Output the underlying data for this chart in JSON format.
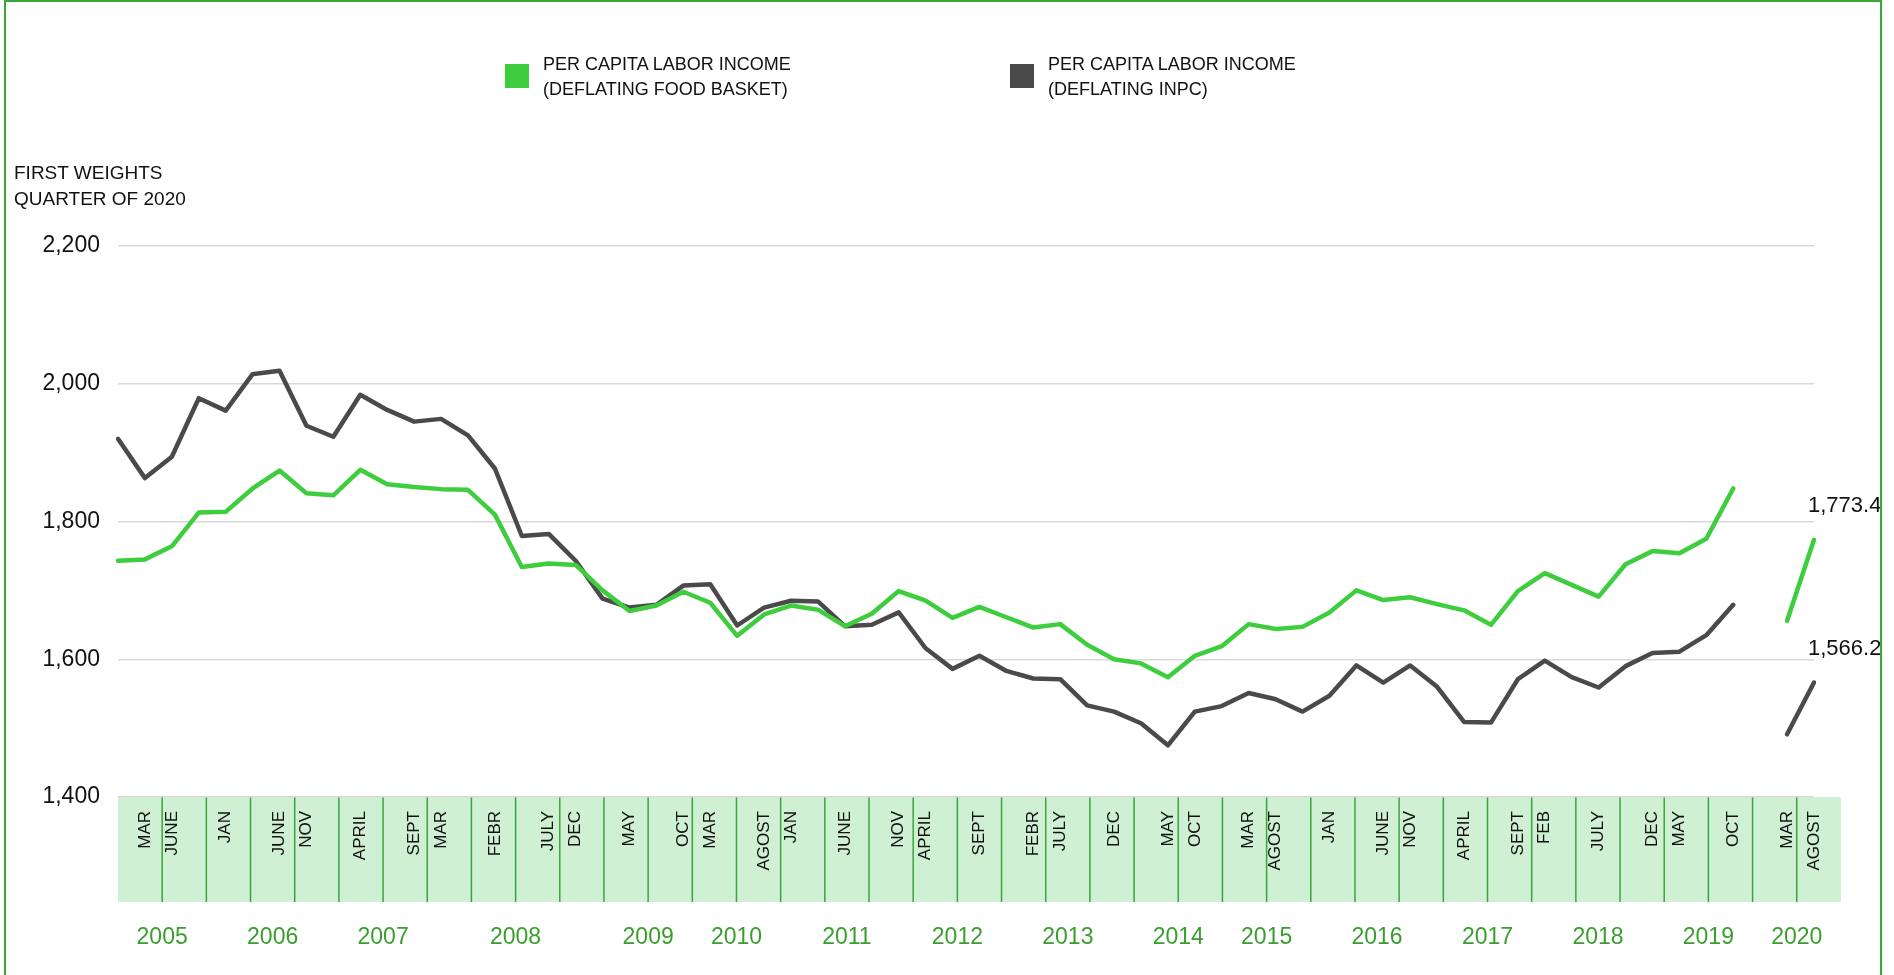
{
  "chart_data": {
    "type": "line",
    "ylabel": "FIRST WEIGHTS QUARTER OF 2020",
    "legend": "top",
    "grid": "y",
    "marker": "none",
    "line_style": "solid",
    "categories": [
      null,
      "MAR",
      "JUNE",
      null,
      "JAN",
      null,
      "JUNE",
      "NOV",
      null,
      "APRIL",
      null,
      "SEPT",
      "MAR",
      null,
      "FEBR",
      null,
      "JULY",
      "DEC",
      null,
      "MAY",
      null,
      "OCT",
      "MAR",
      null,
      "AGOST",
      "JAN",
      null,
      "JUNE",
      null,
      "NOV",
      "APRIL",
      null,
      "SEPT",
      null,
      "FEBR",
      "JULY",
      null,
      "DEC",
      null,
      "MAY",
      "OCT",
      null,
      "MAR",
      "AGOST",
      null,
      "JAN",
      null,
      "JUNE",
      "NOV",
      null,
      "APRIL",
      null,
      "SEPT",
      "FEB",
      null,
      "JULY",
      null,
      "DEC",
      "MAY",
      null,
      "OCT",
      null,
      "MAR",
      "AGOST"
    ],
    "x2lim": [
      2004.52,
      2020.27
    ],
    "x2ticks": [
      {
        "value": 2004.93,
        "label": "2005"
      },
      {
        "value": 2005.956,
        "label": "2006"
      },
      {
        "value": 2006.982,
        "label": "2007"
      },
      {
        "value": 2008.212,
        "label": "2008"
      },
      {
        "value": 2009.443,
        "label": "2009"
      },
      {
        "value": 2010.264,
        "label": "2010"
      },
      {
        "value": 2011.289,
        "label": "2011"
      },
      {
        "value": 2012.315,
        "label": "2012"
      },
      {
        "value": 2013.341,
        "label": "2013"
      },
      {
        "value": 2014.366,
        "label": "2014"
      },
      {
        "value": 2015.187,
        "label": "2015"
      },
      {
        "value": 2016.212,
        "label": "2016"
      },
      {
        "value": 2017.238,
        "label": "2017"
      },
      {
        "value": 2018.264,
        "label": "2018"
      },
      {
        "value": 2019.289,
        "label": "2019"
      },
      {
        "value": 2020.11,
        "label": "2020"
      }
    ],
    "ylim": [
      1400,
      2200
    ],
    "yticks": [
      {
        "value": 1400,
        "label": "1,400"
      },
      {
        "value": 1600,
        "label": "1,600"
      },
      {
        "value": 1800,
        "label": "1,800"
      },
      {
        "value": 2000,
        "label": "2,000"
      },
      {
        "value": 2200,
        "label": "2,200"
      }
    ],
    "series": [
      {
        "name": "PER CAPITA LABOR INCOME (DEFLATING FOOD BASKET)",
        "color": "#3dcd3d",
        "values": [
          1743,
          1745,
          1764,
          1813,
          1814,
          1848,
          1874,
          1841,
          1838,
          1875,
          1854,
          1850,
          1847,
          1846,
          1810,
          1734,
          1739,
          1737,
          1700,
          1670,
          1678,
          1698,
          1682,
          1634,
          1665,
          1678,
          1672,
          1648,
          1666,
          1699,
          1685,
          1660,
          1676,
          1661,
          1646,
          1651,
          1621,
          1600,
          1594,
          1574,
          1605,
          1619,
          1651,
          1644,
          1647,
          1668,
          1700,
          1686,
          1690,
          1680,
          1671,
          1650,
          1699,
          1725,
          1708,
          1691,
          1738,
          1757,
          1754,
          1775,
          1848,
          null,
          1656,
          1773.4
        ],
        "value_labels": [
          null,
          null,
          null,
          null,
          null,
          null,
          null,
          null,
          null,
          null,
          null,
          null,
          null,
          null,
          null,
          null,
          null,
          null,
          null,
          null,
          null,
          null,
          null,
          null,
          null,
          null,
          null,
          null,
          null,
          null,
          null,
          null,
          null,
          null,
          null,
          null,
          null,
          null,
          null,
          null,
          null,
          null,
          null,
          null,
          null,
          null,
          null,
          null,
          null,
          null,
          null,
          null,
          null,
          null,
          null,
          null,
          null,
          null,
          null,
          null,
          null,
          null,
          null,
          "1,773.4"
        ]
      },
      {
        "name": "PER CAPITA LABOR INCOME (DEFLATING INPC)",
        "color": "#4a4a4a",
        "values": [
          1920,
          1863,
          1894,
          1979,
          1961,
          2014,
          2019,
          1939,
          1923,
          1984,
          1962,
          1945,
          1949,
          1925,
          1877,
          1779,
          1782,
          1743,
          1688,
          1675,
          1679,
          1707,
          1709,
          1649,
          1675,
          1685,
          1684,
          1648,
          1650,
          1668,
          1616,
          1586,
          1605,
          1583,
          1572,
          1571,
          1533,
          1524,
          1507,
          1475,
          1524,
          1532,
          1551,
          1542,
          1524,
          1547,
          1591,
          1566,
          1591,
          1560,
          1509,
          1508,
          1571,
          1598,
          1574,
          1559,
          1590,
          1609,
          1611,
          1635,
          1679,
          null,
          1491,
          1566.2
        ],
        "value_labels": [
          null,
          null,
          null,
          null,
          null,
          null,
          null,
          null,
          null,
          null,
          null,
          null,
          null,
          null,
          null,
          null,
          null,
          null,
          null,
          null,
          null,
          null,
          null,
          null,
          null,
          null,
          null,
          null,
          null,
          null,
          null,
          null,
          null,
          null,
          null,
          null,
          null,
          null,
          null,
          null,
          null,
          null,
          null,
          null,
          null,
          null,
          null,
          null,
          null,
          null,
          null,
          null,
          null,
          null,
          null,
          null,
          null,
          null,
          null,
          null,
          null,
          null,
          null,
          "1,566.2"
        ]
      }
    ]
  }
}
